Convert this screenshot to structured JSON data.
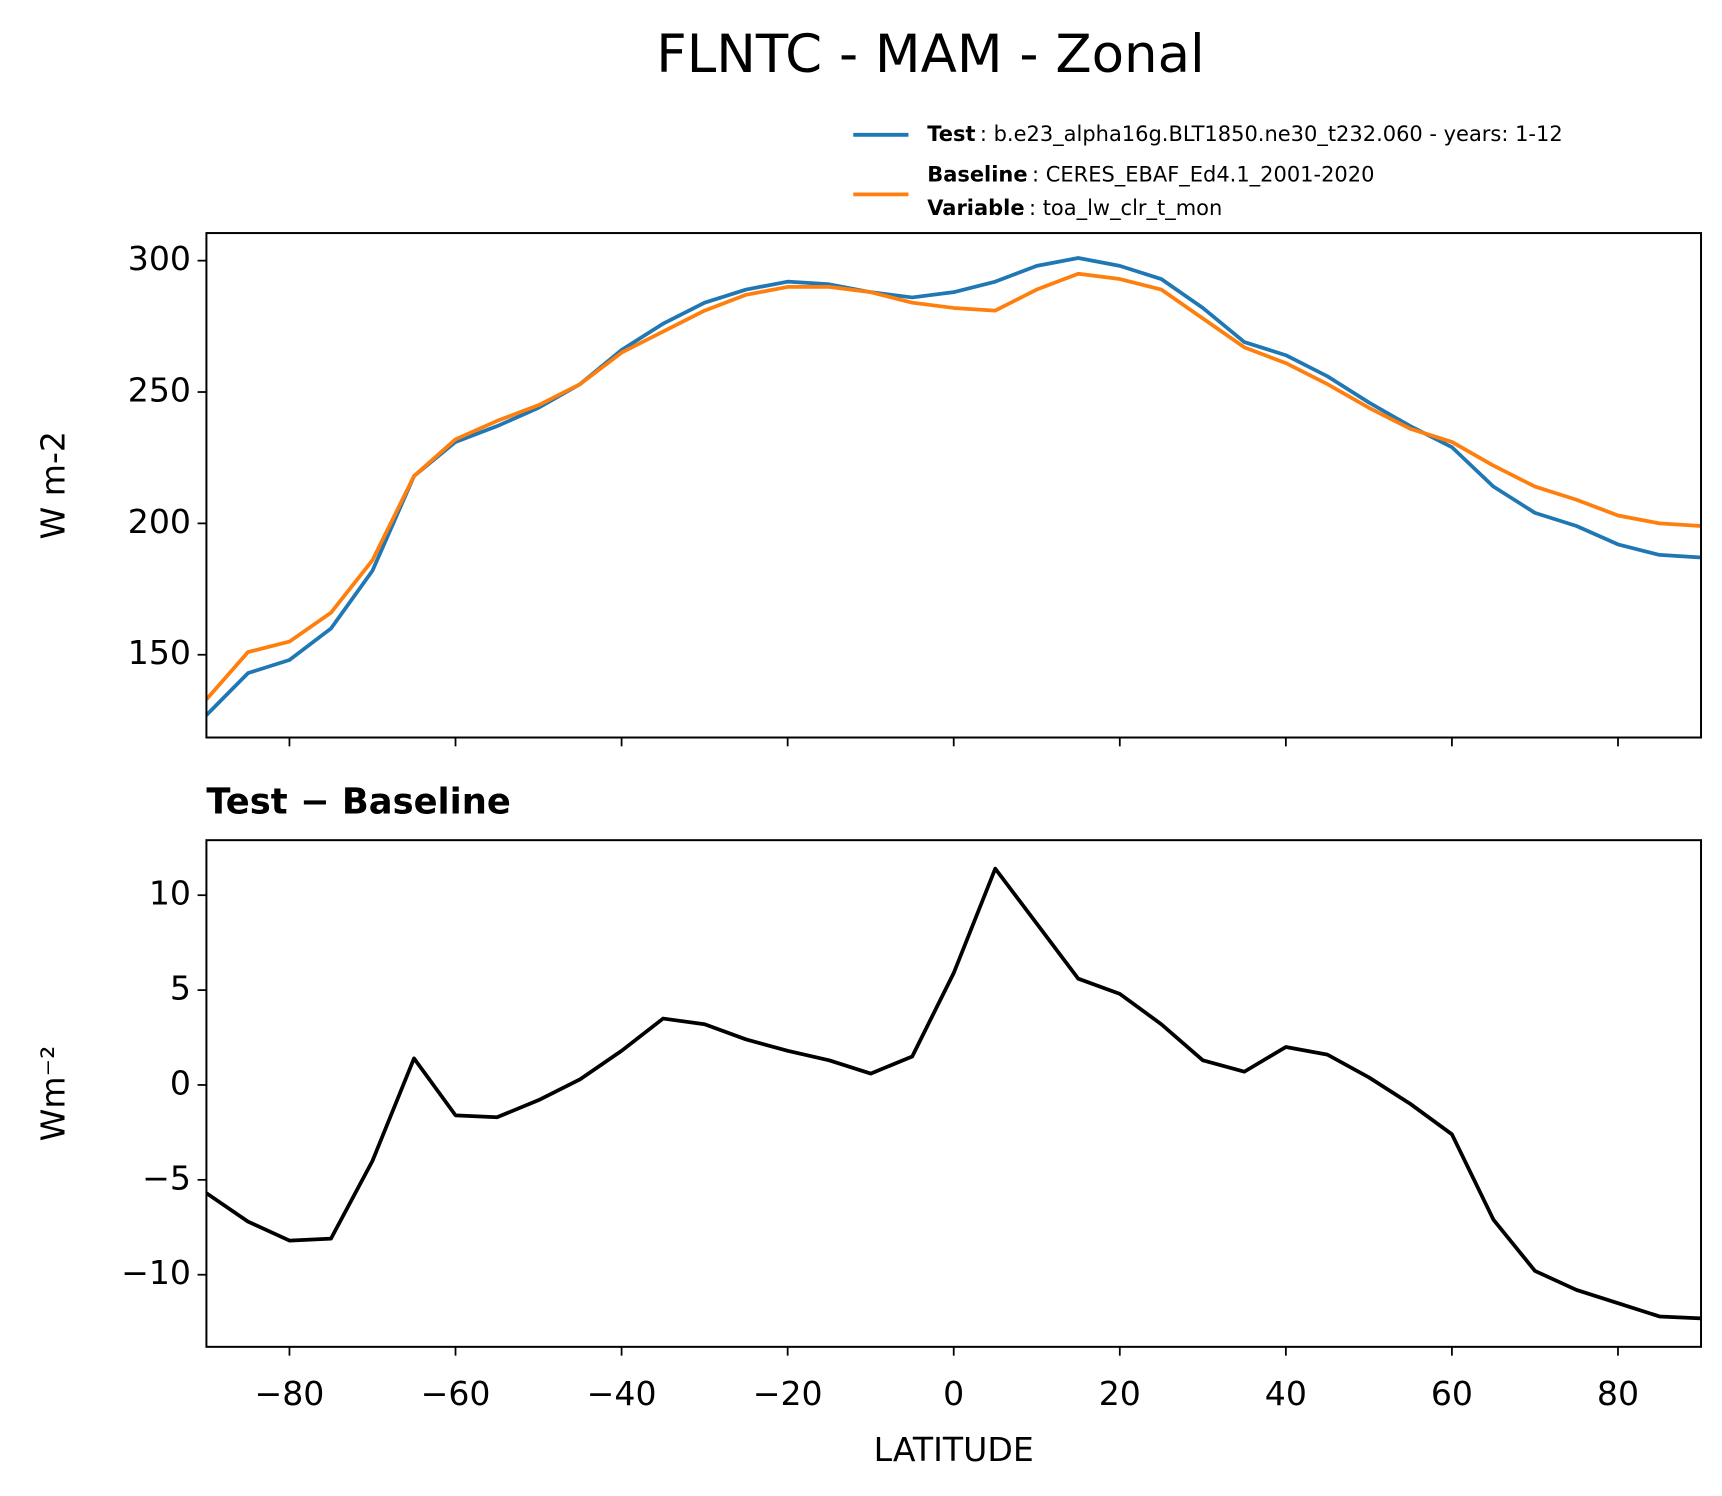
{
  "chart_data": [
    {
      "type": "line",
      "title": "FLNTC - MAM - Zonal",
      "ylabel": "W m-2",
      "x": [
        -90,
        -85,
        -80,
        -75,
        -70,
        -65,
        -60,
        -55,
        -50,
        -45,
        -40,
        -35,
        -30,
        -25,
        -20,
        -15,
        -10,
        -5,
        0,
        5,
        10,
        15,
        20,
        25,
        30,
        35,
        40,
        45,
        50,
        55,
        60,
        65,
        70,
        75,
        80,
        85,
        90
      ],
      "series": [
        {
          "name": "Test",
          "label": ": b.e23_alpha16g.BLT1850.ne30_t232.060 - years: 1-12",
          "color": "#1f77b4",
          "values": [
            127,
            143,
            148,
            160,
            182,
            218,
            231,
            237,
            244,
            253,
            266,
            276,
            284,
            289,
            292,
            291,
            288,
            286,
            288,
            292,
            298,
            301,
            298,
            293,
            282,
            269,
            264,
            256,
            246,
            237,
            229,
            214,
            204,
            199,
            192,
            188,
            187
          ]
        },
        {
          "name": "Baseline",
          "label": ": CERES_EBAF_Ed4.1_2001-2020",
          "extra_name": "Variable",
          "extra_label": ": toa_lw_clr_t_mon",
          "color": "#ff7f0e",
          "values": [
            133,
            151,
            155,
            166,
            186,
            218,
            232,
            239,
            245,
            253,
            265,
            273,
            281,
            287,
            290,
            290,
            288,
            284,
            282,
            281,
            289,
            295,
            293,
            289,
            278,
            267,
            261,
            253,
            244,
            236,
            231,
            222,
            214,
            209,
            203,
            200,
            199
          ]
        }
      ],
      "xlim": [
        -90,
        90
      ],
      "xticks": [
        -80,
        -60,
        -40,
        -20,
        0,
        20,
        40,
        60,
        80
      ],
      "ylim": [
        118.5,
        310.5
      ],
      "yticks": [
        150,
        200,
        250,
        300
      ]
    },
    {
      "type": "line",
      "title": "Test − Baseline",
      "ylabel": "Wm⁻²",
      "xlabel": "LATITUDE",
      "x": [
        -90,
        -85,
        -80,
        -75,
        -70,
        -65,
        -60,
        -55,
        -50,
        -45,
        -40,
        -35,
        -30,
        -25,
        -20,
        -15,
        -10,
        -5,
        0,
        5,
        10,
        15,
        20,
        25,
        30,
        35,
        40,
        45,
        50,
        55,
        60,
        65,
        70,
        75,
        80,
        85,
        90
      ],
      "series": [
        {
          "color": "#000000",
          "values": [
            -5.7,
            -7.2,
            -8.2,
            -8.1,
            -4,
            1.4,
            -1.6,
            -1.7,
            -0.8,
            0.3,
            1.8,
            3.5,
            3.2,
            2.4,
            1.8,
            1.3,
            0.6,
            1.5,
            5.9,
            11.4,
            8.5,
            5.6,
            4.8,
            3.2,
            1.3,
            0.7,
            2.0,
            1.6,
            0.4,
            -1.0,
            -2.6,
            -7.1,
            -9.8,
            -10.8,
            -11.5,
            -12.2,
            -12.3
          ]
        }
      ],
      "xlim": [
        -90,
        90
      ],
      "xticks": [
        {
          "value": -80,
          "label": "−80"
        },
        {
          "value": -60,
          "label": "−60"
        },
        {
          "value": -40,
          "label": "−40"
        },
        {
          "value": -20,
          "label": "−20"
        },
        0,
        20,
        40,
        60,
        80
      ],
      "ylim": [
        -13.8,
        12.9
      ],
      "yticks": [
        {
          "value": -10,
          "label": "−10"
        },
        {
          "value": -5,
          "label": "−5"
        },
        0,
        5,
        10
      ]
    }
  ]
}
